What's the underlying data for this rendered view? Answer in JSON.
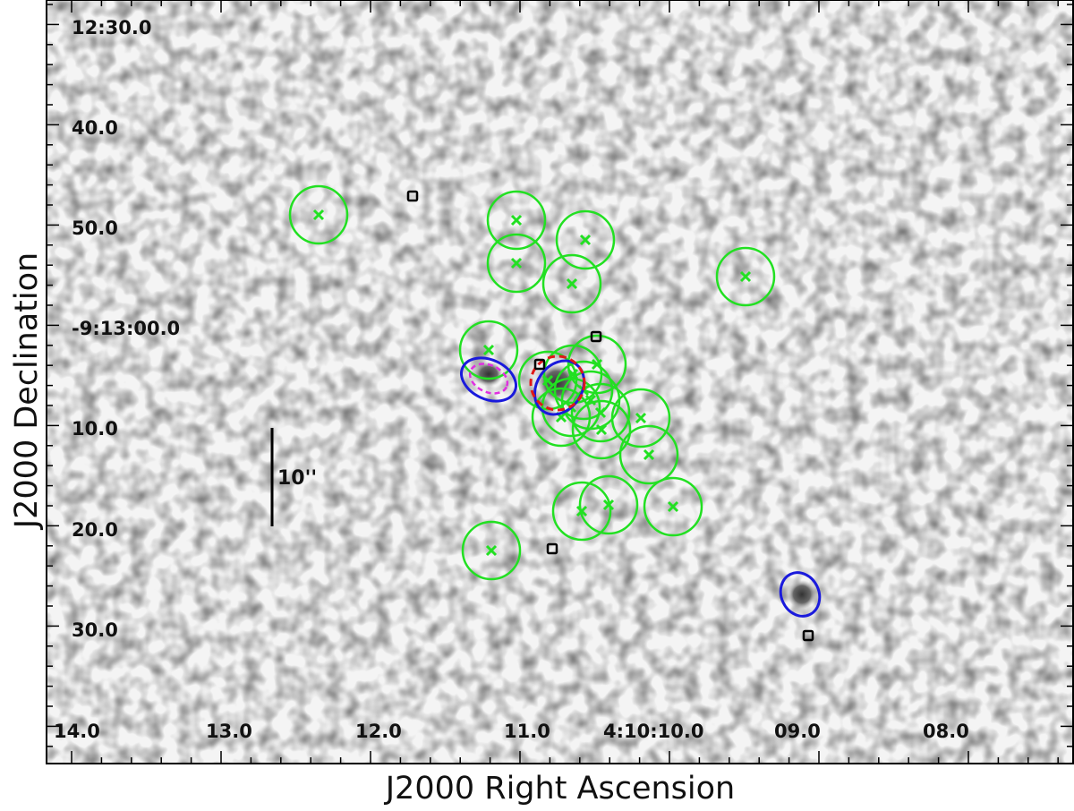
{
  "axes": {
    "x_label": "J2000 Right Ascension",
    "y_label": "J2000 Declination",
    "x_ticks": [
      "14.0",
      "13.0",
      "12.0",
      "11.0",
      "4:10:10.0",
      "09.0",
      "08.0"
    ],
    "y_ticks": [
      "12:30.0",
      "40.0",
      "50.0",
      "-9:13:00.0",
      "10.0",
      "20.0",
      "30.0"
    ]
  },
  "scale_bar": {
    "label": "10''"
  },
  "colors": {
    "green_circles": "#22e022",
    "blue_ellipses": "#1a1adc",
    "red_dashed": "#e01818",
    "magenta_dashed": "#e030e0",
    "black_squares": "#000000"
  },
  "markers": {
    "green_crosses": 22,
    "black_squares": 6,
    "blue_ellipses": 3,
    "red_dashed_circles": 1,
    "magenta_dashed_ellipses": 1
  }
}
